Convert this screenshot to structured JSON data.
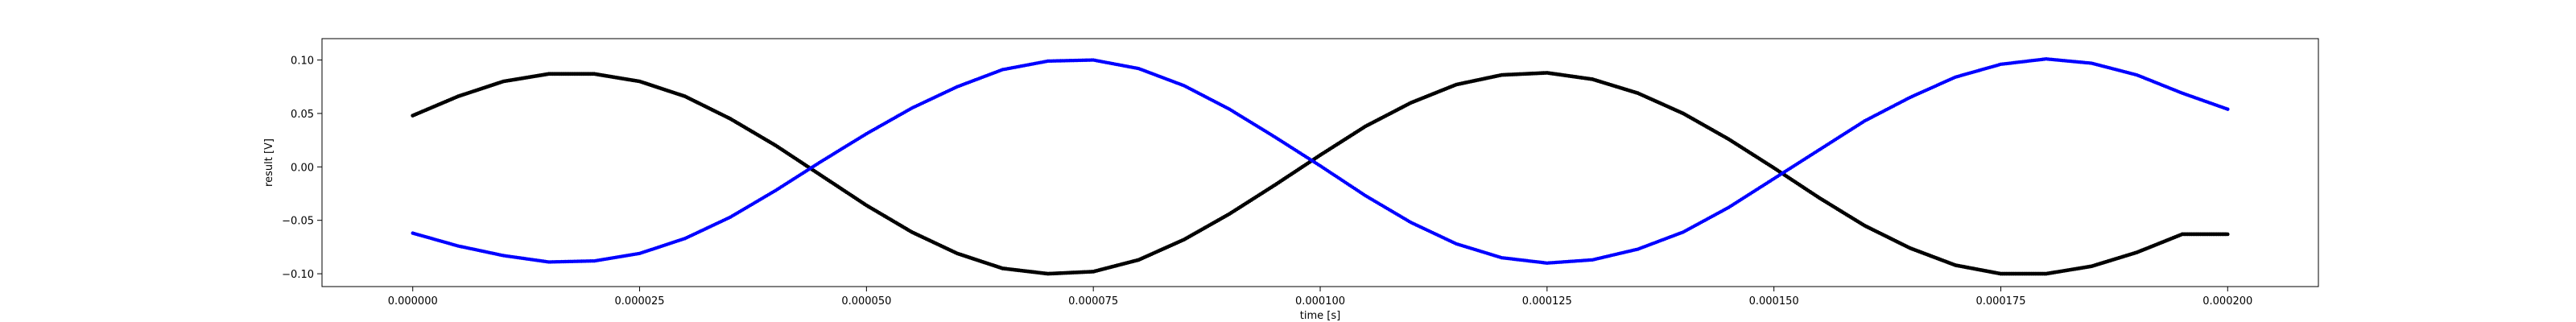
{
  "chart_data": {
    "type": "scatter",
    "title": "",
    "xlabel": "time [s]",
    "ylabel": "result [V]",
    "xlim": [
      -1e-05,
      0.00021
    ],
    "ylim": [
      -0.112,
      0.12
    ],
    "grid": false,
    "legend": "none",
    "xticks": [
      0.0,
      2.5e-05,
      5e-05,
      7.5e-05,
      0.0001,
      0.000125,
      0.00015,
      0.000175,
      0.0002
    ],
    "xtick_labels": [
      "0.000000",
      "0.000025",
      "0.000050",
      "0.000075",
      "0.000100",
      "0.000125",
      "0.000150",
      "0.000175",
      "0.000200"
    ],
    "yticks": [
      -0.1,
      -0.05,
      0.0,
      0.05,
      0.1
    ],
    "ytick_labels": [
      "−0.10",
      "−0.05",
      "0.00",
      "0.05",
      "0.10"
    ],
    "series": [
      {
        "color": "#000000",
        "marker": "dot",
        "x": [
          0.0,
          5e-06,
          1e-05,
          1.5e-05,
          2e-05,
          2.5e-05,
          3e-05,
          3.5e-05,
          4e-05,
          4.5e-05,
          5e-05,
          5.5e-05,
          6e-05,
          6.5e-05,
          7e-05,
          7.5e-05,
          8e-05,
          8.5e-05,
          9e-05,
          9.5e-05,
          0.0001,
          0.000105,
          0.00011,
          0.000115,
          0.00012,
          0.000125,
          0.00013,
          0.000135,
          0.00014,
          0.000145,
          0.00015,
          0.000155,
          0.00016,
          0.000165,
          0.00017,
          0.000175,
          0.00018,
          0.000185,
          0.00019,
          0.000195,
          0.0002
        ],
        "y": [
          0.048,
          0.066,
          0.08,
          0.087,
          0.087,
          0.08,
          0.066,
          0.045,
          0.02,
          -0.008,
          -0.036,
          -0.061,
          -0.081,
          -0.095,
          -0.1,
          -0.098,
          -0.087,
          -0.068,
          -0.044,
          -0.017,
          0.011,
          0.038,
          0.06,
          0.077,
          0.086,
          0.088,
          0.082,
          0.069,
          0.05,
          0.026,
          -0.001,
          -0.029,
          -0.055,
          -0.076,
          -0.092,
          -0.1,
          -0.1,
          -0.093,
          -0.08,
          -0.063,
          -0.063
        ]
      },
      {
        "color": "#0000ff",
        "marker": "dot",
        "x": [
          0.0,
          5e-06,
          1e-05,
          1.5e-05,
          2e-05,
          2.5e-05,
          3e-05,
          3.5e-05,
          4e-05,
          4.5e-05,
          5e-05,
          5.5e-05,
          6e-05,
          6.5e-05,
          7e-05,
          7.5e-05,
          8e-05,
          8.5e-05,
          9e-05,
          9.5e-05,
          0.0001,
          0.000105,
          0.00011,
          0.000115,
          0.00012,
          0.000125,
          0.00013,
          0.000135,
          0.00014,
          0.000145,
          0.00015,
          0.000155,
          0.00016,
          0.000165,
          0.00017,
          0.000175,
          0.00018,
          0.000185,
          0.00019,
          0.000195,
          0.0002
        ],
        "y": [
          -0.062,
          -0.074,
          -0.083,
          -0.089,
          -0.088,
          -0.081,
          -0.067,
          -0.047,
          -0.022,
          0.005,
          0.031,
          0.055,
          0.075,
          0.091,
          0.099,
          0.1,
          0.092,
          0.076,
          0.054,
          0.028,
          0.001,
          -0.027,
          -0.052,
          -0.072,
          -0.085,
          -0.09,
          -0.087,
          -0.077,
          -0.061,
          -0.038,
          -0.011,
          0.016,
          0.043,
          0.065,
          0.084,
          0.096,
          0.101,
          0.097,
          0.086,
          0.069,
          0.054
        ]
      }
    ]
  }
}
